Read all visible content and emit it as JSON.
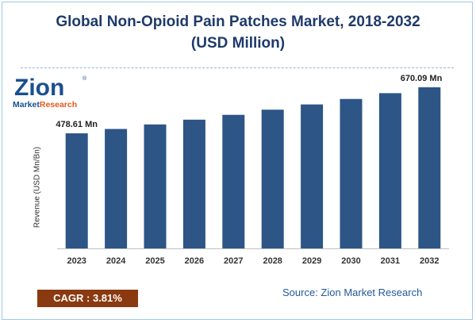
{
  "title_line1": "Global Non-Opioid Pain Patches Market, 2018-2032",
  "title_line2": "(USD Million)",
  "logo": {
    "name": "Zion",
    "registered": "®",
    "sub_market": "Market",
    "sub_research": "Research"
  },
  "cagr_text": "CAGR : 3.81%",
  "source_text": "Source: Zion Market Research",
  "colors": {
    "bar": "#2d5586",
    "title": "#1f3a6b",
    "cagr_bg": "#8a3a10",
    "source": "#1f5a99"
  },
  "chart_data": {
    "type": "bar",
    "title": "Global Non-Opioid Pain Patches Market, 2018-2032 (USD Million)",
    "xlabel": "",
    "ylabel": "Revenue (USD Mn/Bn)",
    "categories": [
      "2023",
      "2024",
      "2025",
      "2026",
      "2027",
      "2028",
      "2029",
      "2030",
      "2031",
      "2032"
    ],
    "values": [
      478.61,
      496.8,
      515.7,
      535.3,
      555.7,
      576.9,
      598.9,
      621.7,
      645.5,
      670.09
    ],
    "data_labels": [
      {
        "index": 0,
        "text": "478.61 Mn"
      },
      {
        "index": 9,
        "text": "670.09 Mn"
      }
    ],
    "ylim": [
      0,
      680
    ],
    "grid": false,
    "legend": "none"
  }
}
